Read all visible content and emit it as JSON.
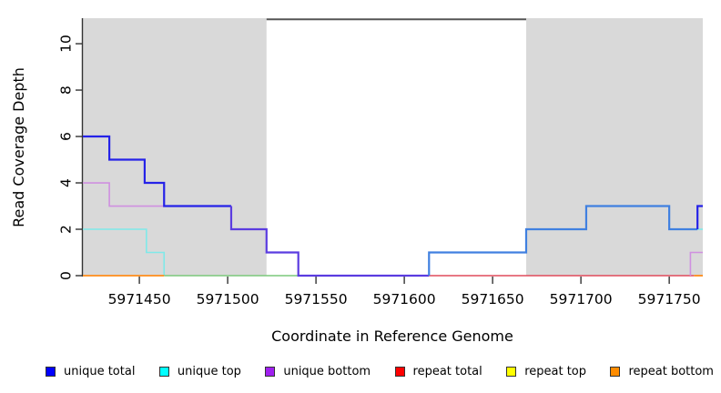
{
  "chart_data": {
    "type": "step-line",
    "title": "",
    "xlabel": "Coordinate in Reference Genome",
    "ylabel": "Read Coverage Depth",
    "xlim": [
      5971418,
      5971769
    ],
    "ylim": [
      0,
      11.1
    ],
    "x_ticks": [
      5971450,
      5971500,
      5971550,
      5971600,
      5971650,
      5971700,
      5971750
    ],
    "y_ticks": [
      0,
      2,
      4,
      6,
      8,
      10
    ],
    "grid": false,
    "legend_position": "bottom",
    "shaded_regions": [
      {
        "name": "left-shaded-region",
        "x_from": 5971418,
        "x_to": 5971522,
        "color": "#d9d9d9"
      },
      {
        "name": "right-shaded-region",
        "x_from": 5971669,
        "x_to": 5971769,
        "color": "#d9d9d9"
      }
    ],
    "gap_marker": {
      "name": "top-gap-line",
      "x_from": 5971522,
      "x_to": 5971669,
      "y": 11.05,
      "color": "#555555"
    },
    "series": [
      {
        "name": "unique-bottom-left",
        "color": "#cf90e0",
        "width": 1.6,
        "points": [
          [
            5971418,
            4
          ],
          [
            5971433,
            4
          ],
          [
            5971433,
            3
          ],
          [
            5971502,
            3
          ]
        ]
      },
      {
        "name": "unique-top-left",
        "color": "#7fe9e9",
        "width": 1.6,
        "points": [
          [
            5971418,
            2
          ],
          [
            5971454,
            2
          ],
          [
            5971454,
            1
          ],
          [
            5971464,
            1
          ],
          [
            5971464,
            0
          ]
        ]
      },
      {
        "name": "zero-line-green-blend",
        "color": "#7cc87c",
        "width": 1.6,
        "points": [
          [
            5971464,
            0
          ],
          [
            5971540,
            0
          ]
        ]
      },
      {
        "name": "repeat-bottom-left",
        "color": "#ff8c1a",
        "width": 1.8,
        "points": [
          [
            5971418,
            0
          ],
          [
            5971464,
            0
          ]
        ]
      },
      {
        "name": "repeat-total",
        "color": "#e04b5c",
        "width": 1.6,
        "points": [
          [
            5971614,
            0
          ],
          [
            5971764,
            0
          ]
        ]
      },
      {
        "name": "repeat-bottom-right",
        "color": "#ff8c1a",
        "width": 1.8,
        "points": [
          [
            5971764,
            0
          ],
          [
            5971769,
            0
          ]
        ]
      },
      {
        "name": "unique-bottom-right",
        "color": "#cf90e0",
        "width": 1.6,
        "points": [
          [
            5971762,
            0
          ],
          [
            5971762,
            1
          ],
          [
            5971769,
            1
          ]
        ]
      },
      {
        "name": "unique-top-right",
        "color": "#7fe9e9",
        "width": 1.6,
        "points": [
          [
            5971766,
            2
          ],
          [
            5971769,
            2
          ]
        ]
      },
      {
        "name": "unique-total-left",
        "color": "#2522e8",
        "width": 2.2,
        "points": [
          [
            5971418,
            6
          ],
          [
            5971433,
            6
          ],
          [
            5971433,
            5
          ],
          [
            5971453,
            5
          ],
          [
            5971453,
            4
          ],
          [
            5971464,
            4
          ],
          [
            5971464,
            3
          ],
          [
            5971502,
            3
          ]
        ]
      },
      {
        "name": "unique-total-mid-blend",
        "color": "#5b3ce0",
        "width": 2.2,
        "points": [
          [
            5971502,
            3
          ],
          [
            5971502,
            2
          ],
          [
            5971522,
            2
          ],
          [
            5971522,
            1
          ],
          [
            5971540,
            1
          ],
          [
            5971540,
            0
          ],
          [
            5971614,
            0
          ]
        ]
      },
      {
        "name": "unique-total-right",
        "color": "#4080e0",
        "width": 2.2,
        "points": [
          [
            5971614,
            0
          ],
          [
            5971614,
            1
          ],
          [
            5971669,
            1
          ],
          [
            5971669,
            2
          ],
          [
            5971703,
            2
          ],
          [
            5971703,
            3
          ],
          [
            5971750,
            3
          ],
          [
            5971750,
            2
          ],
          [
            5971766,
            2
          ]
        ]
      },
      {
        "name": "unique-total-right-edge",
        "color": "#2522e8",
        "width": 2.2,
        "points": [
          [
            5971766,
            2
          ],
          [
            5971766,
            3
          ],
          [
            5971769,
            3
          ]
        ]
      }
    ],
    "legend": [
      {
        "label": "unique total",
        "color": "#0000ff"
      },
      {
        "label": "unique top",
        "color": "#00ffff"
      },
      {
        "label": "unique bottom",
        "color": "#a020f0"
      },
      {
        "label": "repeat total",
        "color": "#ff0000"
      },
      {
        "label": "repeat top",
        "color": "#ffff00"
      },
      {
        "label": "repeat bottom",
        "color": "#ff8c00"
      }
    ],
    "axis_color": "#333333"
  }
}
